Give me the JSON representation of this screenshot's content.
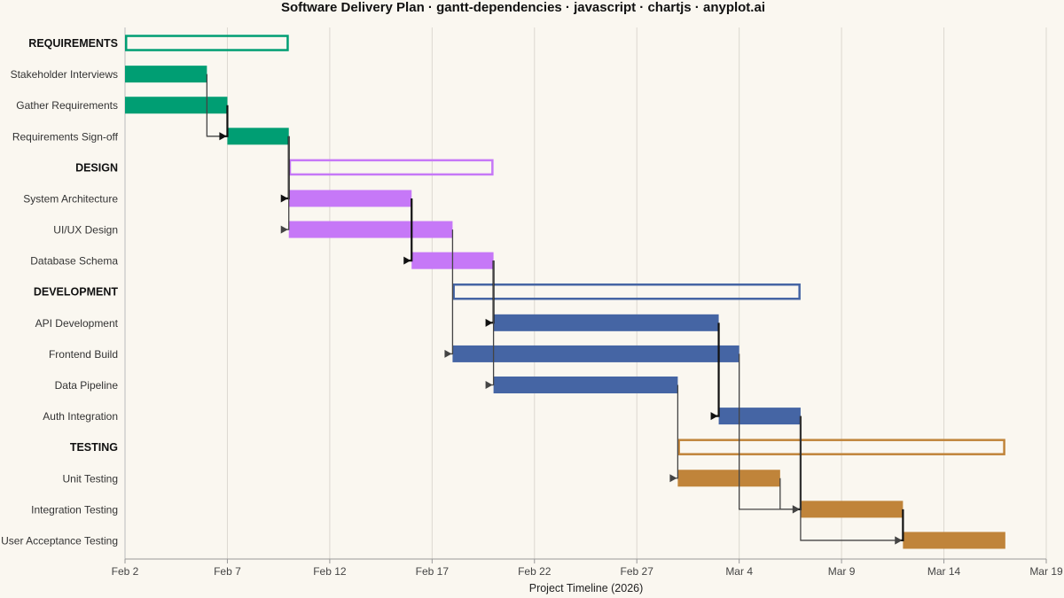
{
  "chart_data": {
    "type": "gantt",
    "title": "Software Delivery Plan · gantt-dependencies · javascript · chartjs · anyplot.ai",
    "xlabel": "Project Timeline (2026)",
    "x_ticks": [
      "Feb 2",
      "Feb 7",
      "Feb 12",
      "Feb 17",
      "Feb 22",
      "Feb 27",
      "Mar 4",
      "Mar 9",
      "Mar 14",
      "Mar 19"
    ],
    "x_range": [
      "2026-02-02",
      "2026-03-19"
    ],
    "grid": true,
    "colors": {
      "requirements": "#009e73",
      "design": "#c678f7",
      "development": "#4565a4",
      "testing": "#c0843a",
      "arrow": "#444444",
      "critical_arrow": "#111111"
    },
    "rows": [
      {
        "label": "REQUIREMENTS",
        "kind": "group",
        "group": "requirements",
        "start": "2026-02-02",
        "end": "2026-02-10"
      },
      {
        "label": "Stakeholder Interviews",
        "kind": "task",
        "group": "requirements",
        "start": "2026-02-02",
        "end": "2026-02-06"
      },
      {
        "label": "Gather Requirements",
        "kind": "task",
        "group": "requirements",
        "start": "2026-02-02",
        "end": "2026-02-07"
      },
      {
        "label": "Requirements Sign-off",
        "kind": "task",
        "group": "requirements",
        "start": "2026-02-07",
        "end": "2026-02-10"
      },
      {
        "label": "DESIGN",
        "kind": "group",
        "group": "design",
        "start": "2026-02-10",
        "end": "2026-02-20"
      },
      {
        "label": "System Architecture",
        "kind": "task",
        "group": "design",
        "start": "2026-02-10",
        "end": "2026-02-16"
      },
      {
        "label": "UI/UX Design",
        "kind": "task",
        "group": "design",
        "start": "2026-02-10",
        "end": "2026-02-18"
      },
      {
        "label": "Database Schema",
        "kind": "task",
        "group": "design",
        "start": "2026-02-16",
        "end": "2026-02-20"
      },
      {
        "label": "DEVELOPMENT",
        "kind": "group",
        "group": "development",
        "start": "2026-02-18",
        "end": "2026-03-07"
      },
      {
        "label": "API Development",
        "kind": "task",
        "group": "development",
        "start": "2026-02-20",
        "end": "2026-03-03"
      },
      {
        "label": "Frontend Build",
        "kind": "task",
        "group": "development",
        "start": "2026-02-18",
        "end": "2026-03-04"
      },
      {
        "label": "Data Pipeline",
        "kind": "task",
        "group": "development",
        "start": "2026-02-20",
        "end": "2026-03-01"
      },
      {
        "label": "Auth Integration",
        "kind": "task",
        "group": "development",
        "start": "2026-03-03",
        "end": "2026-03-07"
      },
      {
        "label": "TESTING",
        "kind": "group",
        "group": "testing",
        "start": "2026-03-01",
        "end": "2026-03-17"
      },
      {
        "label": "Unit Testing",
        "kind": "task",
        "group": "testing",
        "start": "2026-03-01",
        "end": "2026-03-06"
      },
      {
        "label": "Integration Testing",
        "kind": "task",
        "group": "testing",
        "start": "2026-03-07",
        "end": "2026-03-12"
      },
      {
        "label": "User Acceptance Testing",
        "kind": "task",
        "group": "testing",
        "start": "2026-03-12",
        "end": "2026-03-17"
      }
    ],
    "dependencies": [
      {
        "from": "Stakeholder Interviews",
        "to": "Requirements Sign-off",
        "critical": false
      },
      {
        "from": "Gather Requirements",
        "to": "Requirements Sign-off",
        "critical": true
      },
      {
        "from": "Requirements Sign-off",
        "to": "System Architecture",
        "critical": true
      },
      {
        "from": "Requirements Sign-off",
        "to": "UI/UX Design",
        "critical": false
      },
      {
        "from": "System Architecture",
        "to": "Database Schema",
        "critical": true
      },
      {
        "from": "UI/UX Design",
        "to": "Frontend Build",
        "critical": false
      },
      {
        "from": "Database Schema",
        "to": "API Development",
        "critical": true
      },
      {
        "from": "Database Schema",
        "to": "Data Pipeline",
        "critical": false
      },
      {
        "from": "API Development",
        "to": "Auth Integration",
        "critical": true
      },
      {
        "from": "Data Pipeline",
        "to": "Unit Testing",
        "critical": false
      },
      {
        "from": "Frontend Build",
        "to": "Integration Testing",
        "critical": false
      },
      {
        "from": "Auth Integration",
        "to": "Integration Testing",
        "critical": true
      },
      {
        "from": "Unit Testing",
        "to": "Integration Testing",
        "critical": false
      },
      {
        "from": "Integration Testing",
        "to": "User Acceptance Testing",
        "critical": true
      },
      {
        "from": "Auth Integration",
        "to": "User Acceptance Testing",
        "critical": false
      }
    ]
  }
}
